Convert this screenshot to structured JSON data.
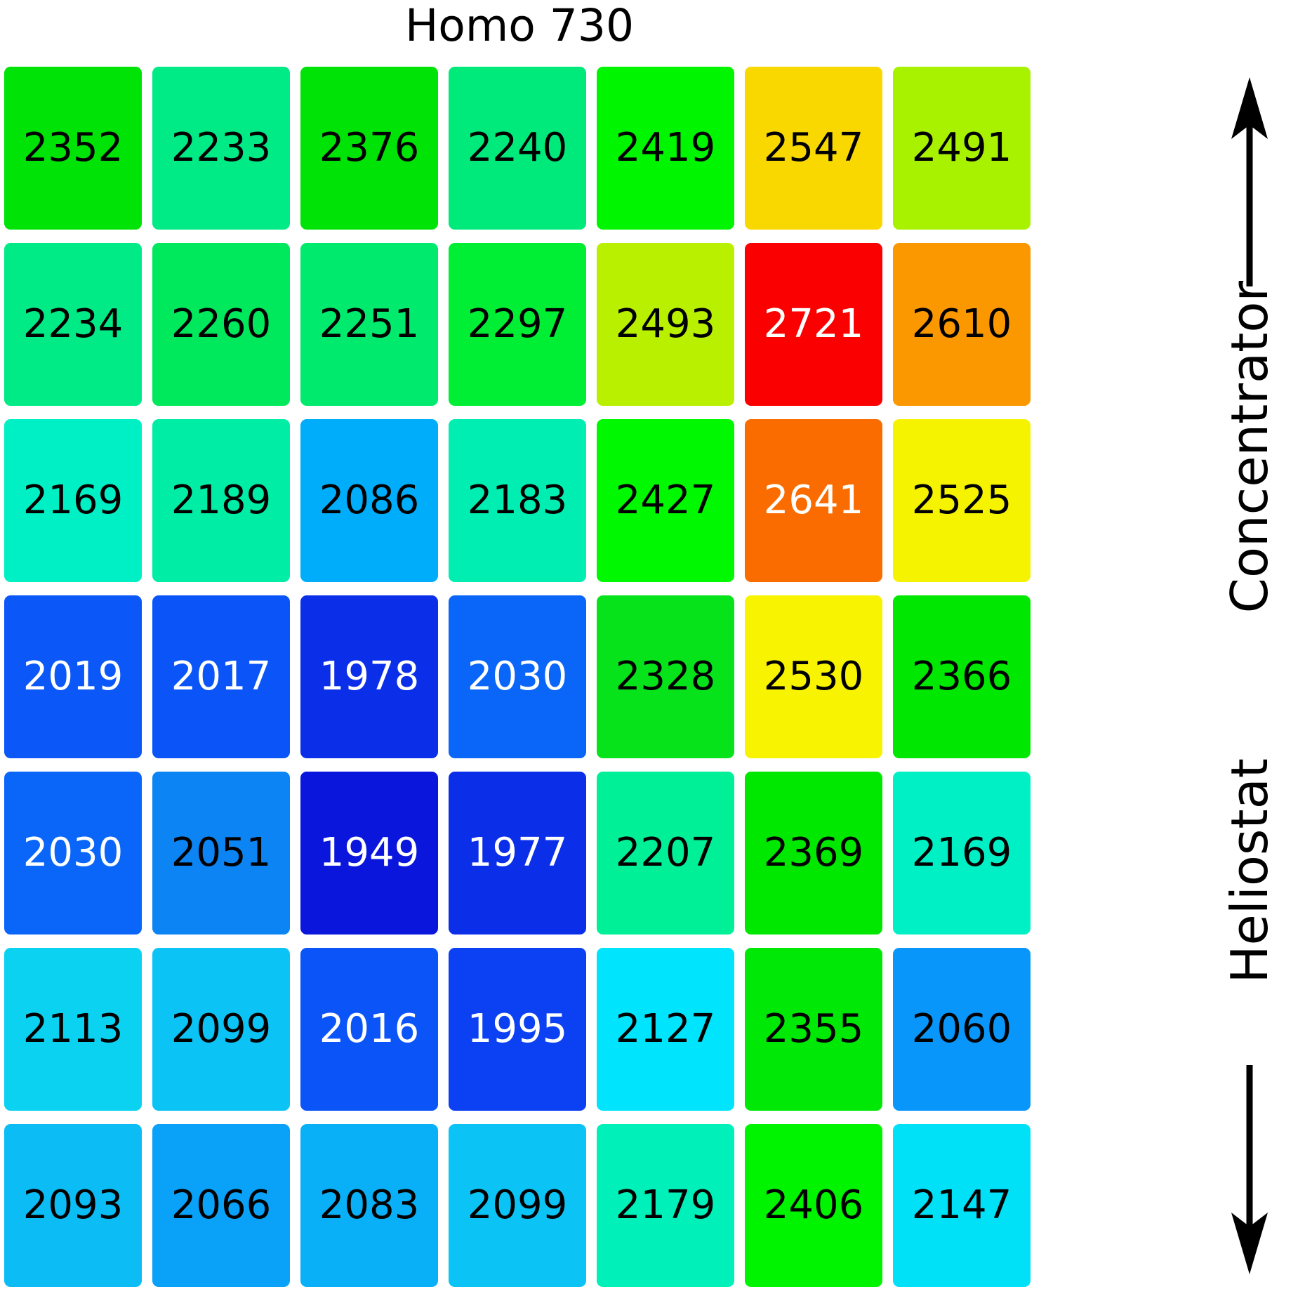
{
  "title": "Homo 730",
  "right_axis": {
    "concentrator_label": "Concentrator",
    "heliostat_label": "Heliostat",
    "up_arrow_icon": "arrow-up",
    "down_arrow_icon": "arrow-down"
  },
  "chart_data": {
    "type": "heatmap",
    "title": "Homo 730",
    "rows": 7,
    "cols": 7,
    "value_min": 1949,
    "value_max": 2721,
    "colormap": "jet-like (blue=low, red=high)",
    "grid_gap_color": "#ffffff",
    "side_labels": {
      "upper": "Concentrator",
      "upper_arrow_direction": "up",
      "lower": "Heliostat",
      "lower_arrow_direction": "down"
    },
    "cells": [
      [
        {
          "value": 2352,
          "color": "#00e307",
          "text_color": "#000000"
        },
        {
          "value": 2233,
          "color": "#00ea85",
          "text_color": "#000000"
        },
        {
          "value": 2376,
          "color": "#00e307",
          "text_color": "#000000"
        },
        {
          "value": 2240,
          "color": "#00ea7b",
          "text_color": "#000000"
        },
        {
          "value": 2419,
          "color": "#00f500",
          "text_color": "#000000"
        },
        {
          "value": 2547,
          "color": "#f9d800",
          "text_color": "#000000"
        },
        {
          "value": 2491,
          "color": "#a8f200",
          "text_color": "#000000"
        }
      ],
      [
        {
          "value": 2234,
          "color": "#00ea85",
          "text_color": "#000000"
        },
        {
          "value": 2260,
          "color": "#00e95c",
          "text_color": "#000000"
        },
        {
          "value": 2251,
          "color": "#00eb6e",
          "text_color": "#000000"
        },
        {
          "value": 2297,
          "color": "#00ee33",
          "text_color": "#000000"
        },
        {
          "value": 2493,
          "color": "#b9f000",
          "text_color": "#000000"
        },
        {
          "value": 2721,
          "color": "#fb0000",
          "text_color": "#ffffff"
        },
        {
          "value": 2610,
          "color": "#fb9800",
          "text_color": "#000000"
        }
      ],
      [
        {
          "value": 2169,
          "color": "#00f0c5",
          "text_color": "#000000"
        },
        {
          "value": 2189,
          "color": "#00eda6",
          "text_color": "#000000"
        },
        {
          "value": 2086,
          "color": "#00adfb",
          "text_color": "#000000"
        },
        {
          "value": 2183,
          "color": "#00eeb2",
          "text_color": "#000000"
        },
        {
          "value": 2427,
          "color": "#00f800",
          "text_color": "#000000"
        },
        {
          "value": 2641,
          "color": "#fa6c00",
          "text_color": "#ffffff"
        },
        {
          "value": 2525,
          "color": "#f6f300",
          "text_color": "#000000"
        }
      ],
      [
        {
          "value": 2019,
          "color": "#0b57f8",
          "text_color": "#ffffff"
        },
        {
          "value": 2017,
          "color": "#0b55f8",
          "text_color": "#ffffff"
        },
        {
          "value": 1978,
          "color": "#0b2fe9",
          "text_color": "#ffffff"
        },
        {
          "value": 2030,
          "color": "#0a65f9",
          "text_color": "#ffffff"
        },
        {
          "value": 2328,
          "color": "#07e31b",
          "text_color": "#000000"
        },
        {
          "value": 2530,
          "color": "#f8f300",
          "text_color": "#000000"
        },
        {
          "value": 2366,
          "color": "#00e701",
          "text_color": "#000000"
        }
      ],
      [
        {
          "value": 2030,
          "color": "#0a65f9",
          "text_color": "#ffffff"
        },
        {
          "value": 2051,
          "color": "#0c84f3",
          "text_color": "#000000"
        },
        {
          "value": 1949,
          "color": "#0a16dc",
          "text_color": "#ffffff"
        },
        {
          "value": 1977,
          "color": "#0b2ee9",
          "text_color": "#ffffff"
        },
        {
          "value": 2207,
          "color": "#00f098",
          "text_color": "#000000"
        },
        {
          "value": 2369,
          "color": "#00e800",
          "text_color": "#000000"
        },
        {
          "value": 2169,
          "color": "#00f0c5",
          "text_color": "#000000"
        }
      ],
      [
        {
          "value": 2113,
          "color": "#0cd2f2",
          "text_color": "#000000"
        },
        {
          "value": 2099,
          "color": "#0cc3f5",
          "text_color": "#000000"
        },
        {
          "value": 2016,
          "color": "#0b54f8",
          "text_color": "#ffffff"
        },
        {
          "value": 1995,
          "color": "#0b41f2",
          "text_color": "#ffffff"
        },
        {
          "value": 2127,
          "color": "#00e5fd",
          "text_color": "#000000"
        },
        {
          "value": 2355,
          "color": "#00e806",
          "text_color": "#000000"
        },
        {
          "value": 2060,
          "color": "#0996fb",
          "text_color": "#000000"
        }
      ],
      [
        {
          "value": 2093,
          "color": "#0bbcf5",
          "text_color": "#000000"
        },
        {
          "value": 2066,
          "color": "#0aa1f8",
          "text_color": "#000000"
        },
        {
          "value": 2083,
          "color": "#0ab0f7",
          "text_color": "#000000"
        },
        {
          "value": 2099,
          "color": "#0cc3f5",
          "text_color": "#000000"
        },
        {
          "value": 2179,
          "color": "#00f0ba",
          "text_color": "#000000"
        },
        {
          "value": 2406,
          "color": "#00f400",
          "text_color": "#000000"
        },
        {
          "value": 2147,
          "color": "#00e1f8",
          "text_color": "#000000"
        }
      ]
    ]
  }
}
